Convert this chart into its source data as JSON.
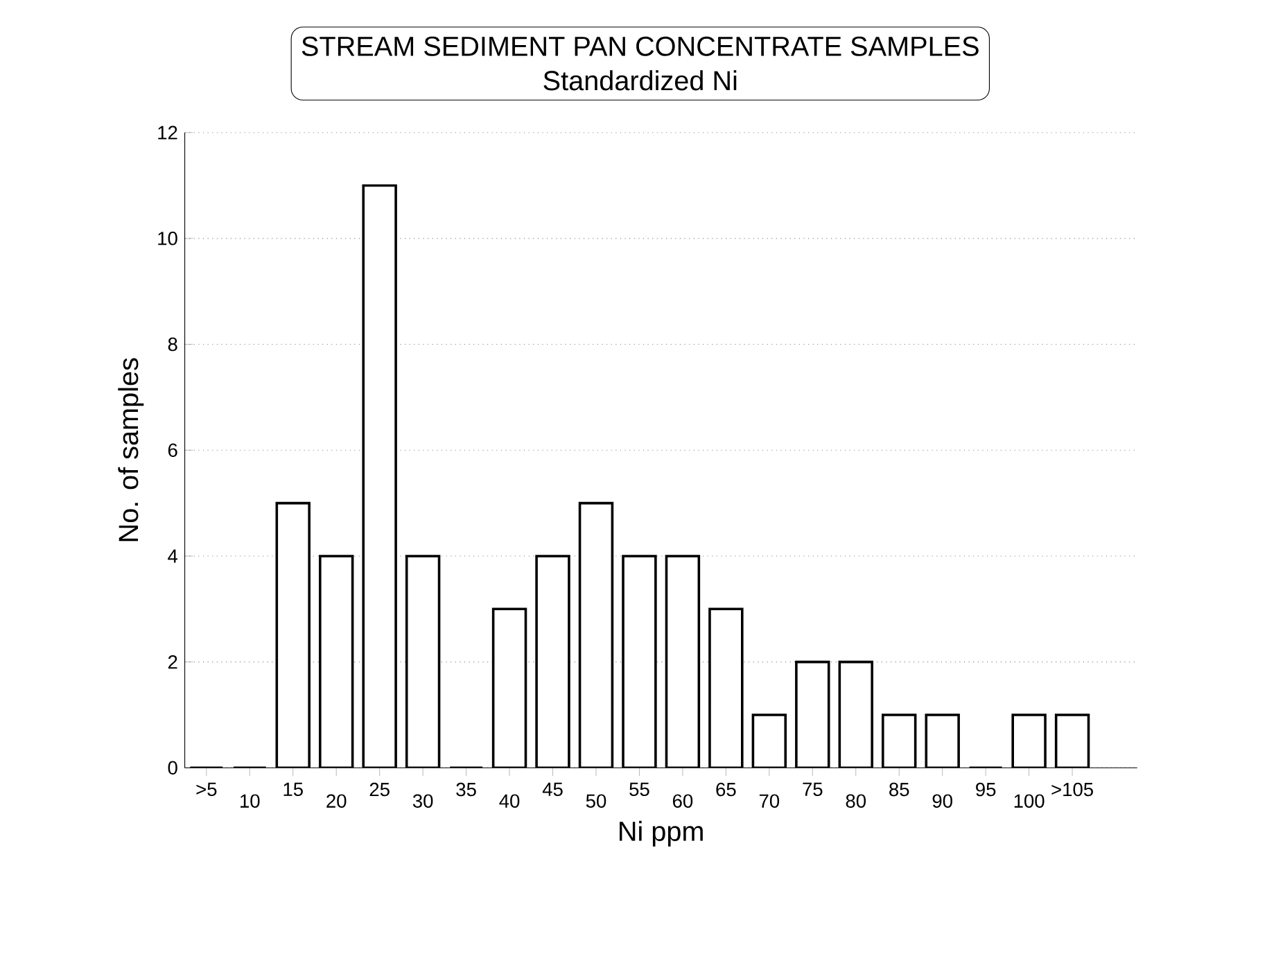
{
  "chart_data": {
    "type": "bar",
    "title": "STREAM SEDIMENT PAN CONCENTRATE SAMPLES",
    "subtitle": "Standardized Ni",
    "xlabel": "Ni ppm",
    "ylabel": "No. of samples",
    "categories": [
      ">5",
      "10",
      "15",
      "20",
      "25",
      "30",
      "35",
      "40",
      "45",
      "50",
      "55",
      "60",
      "65",
      "70",
      "75",
      "80",
      "85",
      "90",
      "95",
      "100",
      ">105"
    ],
    "values": [
      0,
      0,
      5,
      4,
      11,
      4,
      0,
      3,
      4,
      5,
      4,
      4,
      3,
      1,
      2,
      2,
      1,
      1,
      0,
      1,
      1
    ],
    "color": "#ffffff",
    "ylim": [
      0,
      12
    ],
    "yticks": [
      0,
      2,
      4,
      6,
      8,
      10,
      12
    ],
    "grid": "y"
  }
}
